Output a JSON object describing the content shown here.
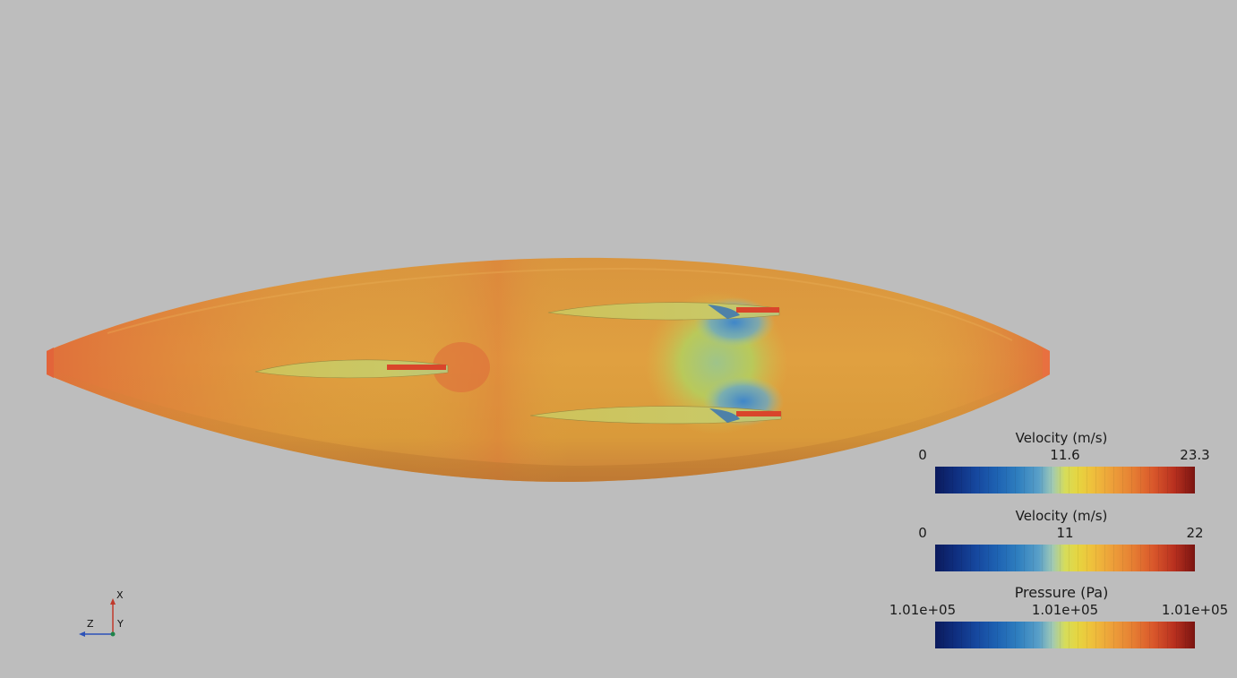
{
  "legends": [
    {
      "title": "Velocity (m/s)",
      "min": "0",
      "mid": "11.6",
      "max": "23.3"
    },
    {
      "title": "Velocity (m/s)",
      "min": "0",
      "mid": "11",
      "max": "22"
    },
    {
      "title": "Pressure (Pa)",
      "min": "1.01e+05",
      "mid": "1.01e+05",
      "max": "1.01e+05"
    }
  ],
  "orientation_axes": {
    "x": "X",
    "y": "Y",
    "z": "Z"
  },
  "colors": {
    "background": "#bdbdbd",
    "colormap_low": "#0b1a5c",
    "colormap_mid": "#d6dc5a",
    "colormap_high": "#7a1411",
    "axis_x": "#c0392b",
    "axis_y": "#1e8449",
    "axis_z": "#2c52b8"
  }
}
